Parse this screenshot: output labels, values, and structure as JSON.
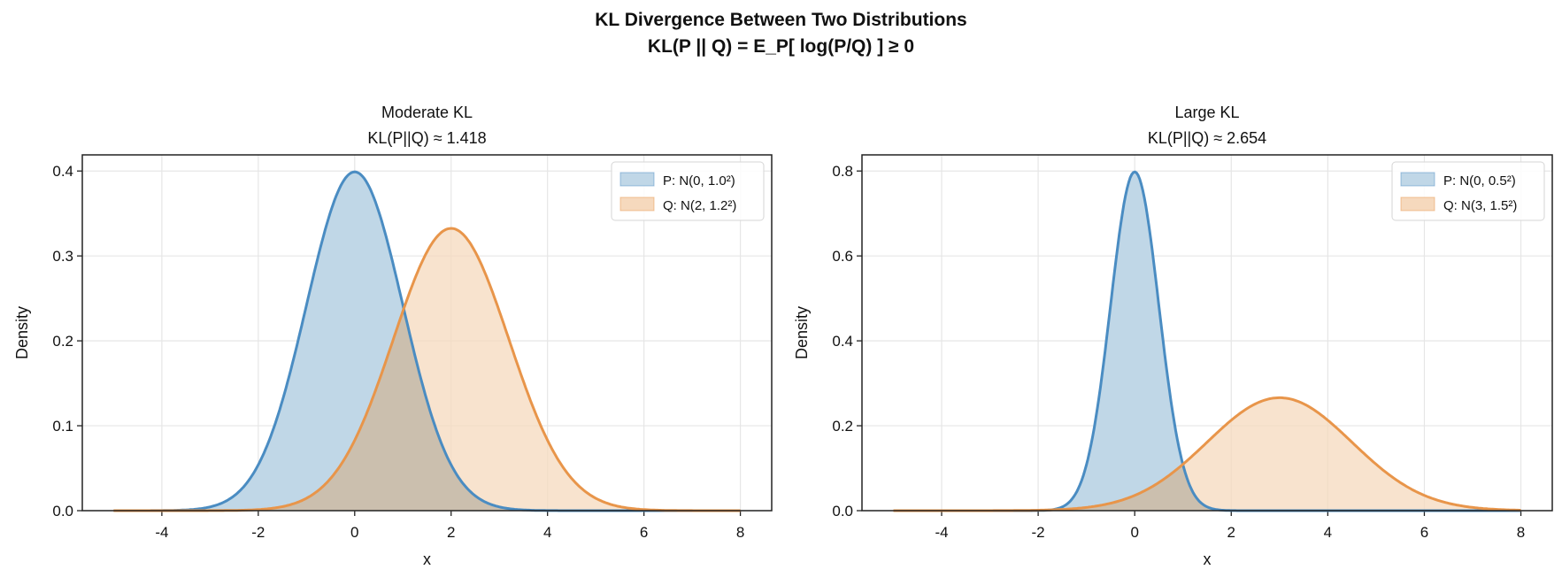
{
  "figure": {
    "title_line1": "KL Divergence Between Two Distributions",
    "title_line2": "KL(P || Q) = E_P[ log(P/Q) ] ≥ 0"
  },
  "colors": {
    "P": "#4a8cc2",
    "Q": "#e8954a",
    "P_fill": "#c0d7e7",
    "Q_fill": "#f6d9bd",
    "overlap_fill": "#cbbfae",
    "grid": "#e6e6e6"
  },
  "chart_data": [
    {
      "type": "area",
      "title": "Moderate KL",
      "subtitle": "KL(P||Q) ≈ 1.418",
      "xlabel": "x",
      "ylabel": "Density",
      "x_range": [
        -5,
        8
      ],
      "xlim": [
        -5.65,
        8.65
      ],
      "ylim": [
        0,
        0.419
      ],
      "xticks": [
        "-4",
        "-2",
        "0",
        "2",
        "4",
        "6",
        "8"
      ],
      "yticks": [
        "0.0",
        "0.1",
        "0.2",
        "0.3",
        "0.4"
      ],
      "grid": true,
      "legend_position": "top-right",
      "series": [
        {
          "name": "P: N(0, 1.0²)",
          "distribution": "normal",
          "mean": 0,
          "std": 1.0,
          "peak": 0.399
        },
        {
          "name": "Q: N(2, 1.2²)",
          "distribution": "normal",
          "mean": 2,
          "std": 1.2,
          "peak": 0.332
        }
      ]
    },
    {
      "type": "area",
      "title": "Large KL",
      "subtitle": "KL(P||Q) ≈ 2.654",
      "xlabel": "x",
      "ylabel": "Density",
      "x_range": [
        -5,
        8
      ],
      "xlim": [
        -5.65,
        8.65
      ],
      "ylim": [
        0,
        0.838
      ],
      "xticks": [
        "-4",
        "-2",
        "0",
        "2",
        "4",
        "6",
        "8"
      ],
      "yticks": [
        "0.0",
        "0.2",
        "0.4",
        "0.6",
        "0.8"
      ],
      "grid": true,
      "legend_position": "top-right",
      "series": [
        {
          "name": "P: N(0, 0.5²)",
          "distribution": "normal",
          "mean": 0,
          "std": 0.5,
          "peak": 0.798
        },
        {
          "name": "Q: N(3, 1.5²)",
          "distribution": "normal",
          "mean": 3,
          "std": 1.5,
          "peak": 0.266
        }
      ]
    }
  ]
}
